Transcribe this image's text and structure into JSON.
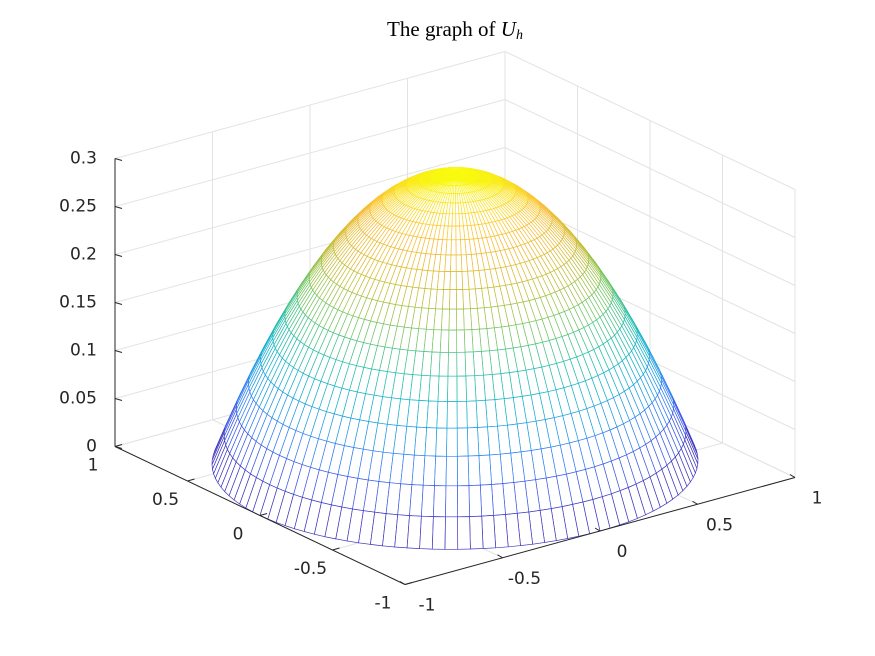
{
  "chart_data": {
    "type": "surface3d",
    "title": "The graph of",
    "title_symbol": "U",
    "title_subscript": "h",
    "r": [
      0,
      0.05,
      0.1,
      0.15,
      0.2,
      0.25,
      0.3,
      0.35,
      0.4,
      0.45,
      0.5,
      0.55,
      0.6,
      0.65,
      0.7,
      0.75,
      0.8,
      0.85,
      0.9,
      0.95,
      1
    ],
    "z": [
      0.3,
      0.29925,
      0.297,
      0.29325,
      0.288,
      0.28125,
      0.273,
      0.26325,
      0.252,
      0.23925,
      0.225,
      0.20925,
      0.192,
      0.17325,
      0.153,
      0.13125,
      0.108,
      0.08325,
      0.057,
      0.02925,
      0
    ],
    "xlim": [
      -1,
      1
    ],
    "xticks": [
      -1,
      -0.5,
      0,
      0.5,
      1
    ],
    "ylim": [
      -1,
      1
    ],
    "yticks": [
      -1,
      -0.5,
      0,
      0.5,
      1
    ],
    "zlim": [
      0,
      0.3
    ],
    "zticks": [
      0,
      0.05,
      0.1,
      0.15,
      0.2,
      0.25,
      0.3
    ],
    "grid": true,
    "colormap": [
      "#3e26a8",
      "#4352e4",
      "#2f86f5",
      "#14aed6",
      "#2bc1a4",
      "#7fc75a",
      "#d4bb32",
      "#fbbf3a",
      "#f9fb0e"
    ]
  }
}
